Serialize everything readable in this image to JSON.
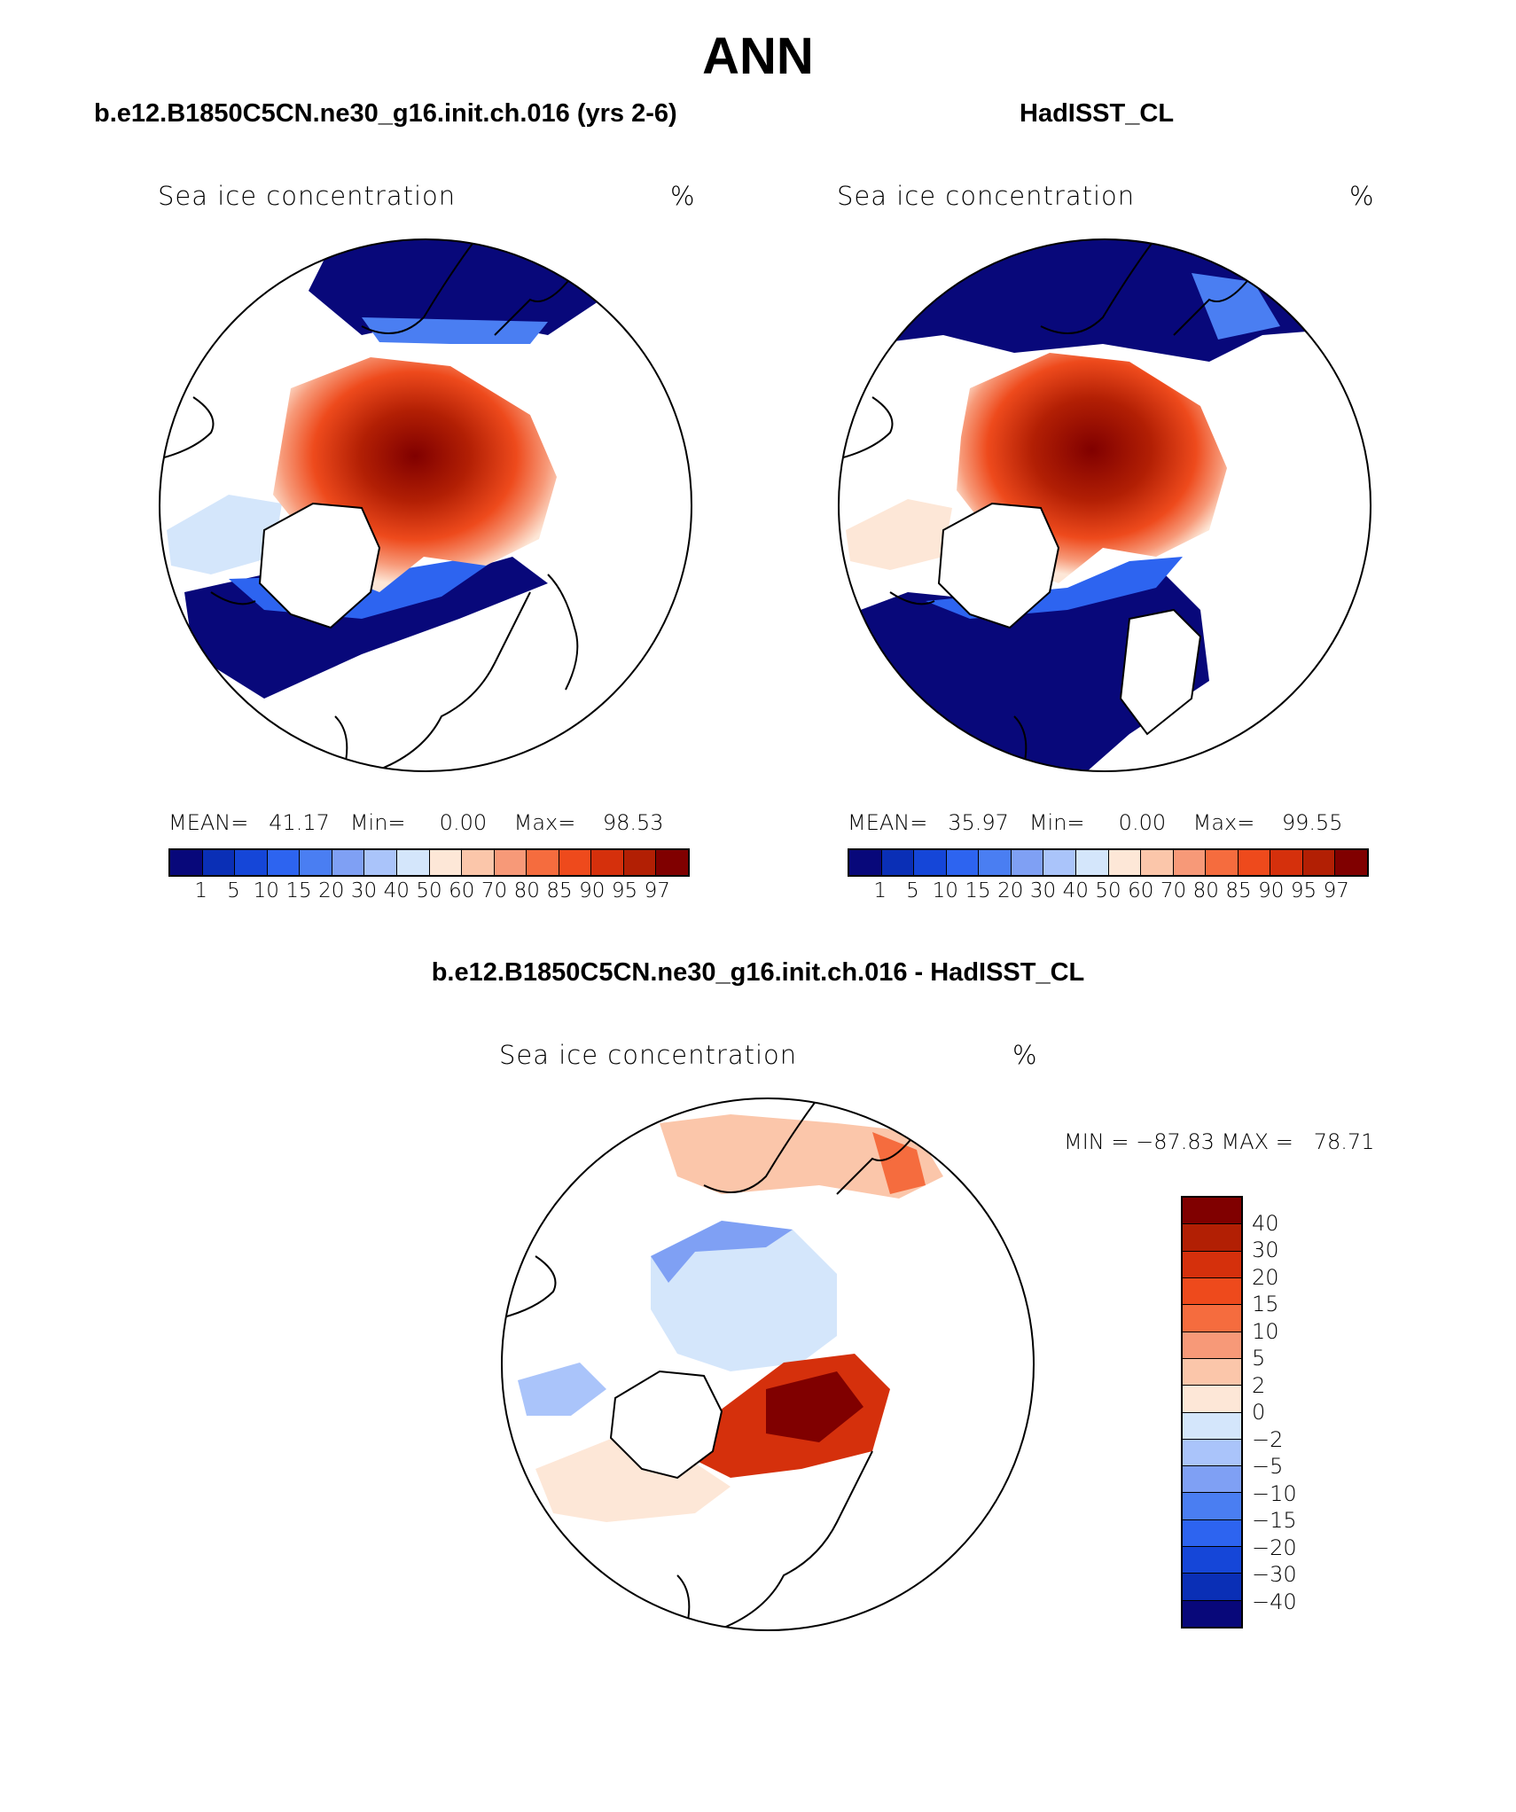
{
  "figure": {
    "title": "ANN",
    "panels": [
      {
        "title": "b.e12.B1850C5CN.ne30_g16.init.ch.016 (yrs 2-6)",
        "variable": "Sea ice concentration",
        "units": "%",
        "stats_text": "MEAN=   41.17   Min=     0.00    Max=    98.53"
      },
      {
        "title": "HadISST_CL",
        "variable": "Sea ice concentration",
        "units": "%",
        "stats_text": "MEAN=   35.97   Min=     0.00    Max=    99.55"
      },
      {
        "title": "b.e12.B1850C5CN.ne30_g16.init.ch.016 - HadISST_CL",
        "variable": "Sea ice concentration",
        "units": "%",
        "stats_text": "MIN = −87.83 MAX =   78.71"
      }
    ],
    "colorbar_levels": [
      "1",
      "5",
      "10",
      "15",
      "20",
      "30",
      "40",
      "50",
      "60",
      "70",
      "80",
      "85",
      "90",
      "95",
      "97"
    ],
    "colorbar_colors": [
      "#08087a",
      "#0a2fb6",
      "#1546d8",
      "#2d64f0",
      "#4a7ef2",
      "#7fa0f4",
      "#aac4fa",
      "#d4e6fb",
      "#fde7d7",
      "#fbc6aa",
      "#f79978",
      "#f56c3e",
      "#ee4a1c",
      "#d5300c",
      "#b21f04",
      "#800000"
    ],
    "diff_levels": [
      "40",
      "30",
      "20",
      "15",
      "10",
      "5",
      "2",
      "0",
      "−2",
      "−5",
      "−10",
      "−15",
      "−20",
      "−30",
      "−40"
    ],
    "diff_colors": [
      "#800000",
      "#b21f04",
      "#d5300c",
      "#ee4a1c",
      "#f56c3e",
      "#f79978",
      "#fbc6aa",
      "#fde7d7",
      "#d4e6fb",
      "#aac4fa",
      "#7fa0f4",
      "#4a7ef2",
      "#2d64f0",
      "#1546d8",
      "#0a2fb6",
      "#08087a"
    ]
  }
}
